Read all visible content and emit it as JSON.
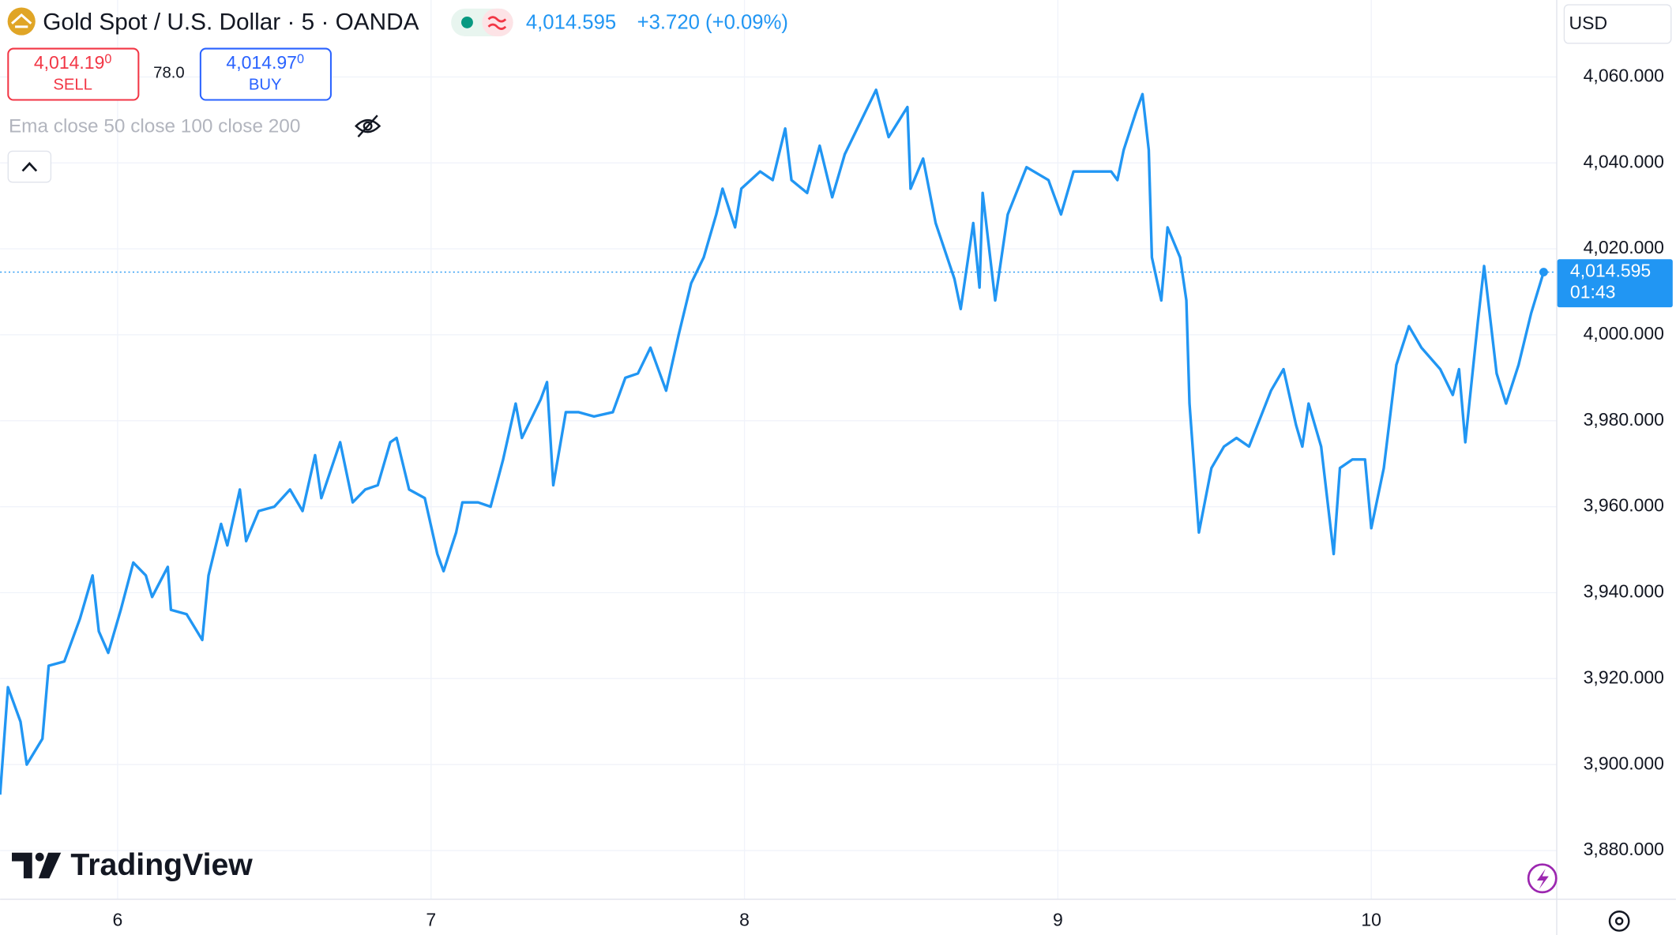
{
  "chart_data": {
    "type": "line",
    "title": "Gold Spot / U.S. Dollar · 5 · OANDA",
    "change_label": "+3.720 (+0.09%)",
    "current_price": {
      "value": 4014.595,
      "label": "4,014.595"
    },
    "countdown": "01:43",
    "currency": "USD",
    "sell": {
      "price": "4,014.19",
      "price_sup": "0",
      "label": "SELL"
    },
    "spread": "78.0",
    "buy": {
      "price": "4,014.97",
      "price_sup": "0",
      "label": "BUY"
    },
    "indicator": "Ema close 50 close 100 close 200",
    "brand": "TradingView",
    "color": "#2196f3",
    "grid": true,
    "x": [
      5.625,
      5.65,
      5.69,
      5.71,
      5.76,
      5.78,
      5.83,
      5.88,
      5.92,
      5.94,
      5.97,
      6.01,
      6.05,
      6.09,
      6.11,
      6.16,
      6.17,
      6.22,
      6.27,
      6.29,
      6.33,
      6.35,
      6.39,
      6.41,
      6.45,
      6.5,
      6.55,
      6.59,
      6.63,
      6.65,
      6.71,
      6.75,
      6.79,
      6.83,
      6.87,
      6.89,
      6.93,
      6.98,
      7.02,
      7.04,
      7.08,
      7.1,
      7.15,
      7.19,
      7.23,
      7.27,
      7.29,
      7.35,
      7.37,
      7.39,
      7.43,
      7.47,
      7.52,
      7.58,
      7.62,
      7.66,
      7.7,
      7.75,
      7.79,
      7.83,
      7.87,
      7.91,
      7.93,
      7.97,
      7.99,
      8.05,
      8.09,
      8.13,
      8.15,
      8.2,
      8.24,
      8.28,
      8.32,
      8.38,
      8.42,
      8.46,
      8.52,
      8.53,
      8.57,
      8.61,
      8.67,
      8.69,
      8.73,
      8.75,
      8.76,
      8.8,
      8.84,
      8.9,
      8.97,
      9.01,
      9.05,
      9.11,
      9.17,
      9.19,
      9.21,
      9.25,
      9.27,
      9.29,
      9.3,
      9.33,
      9.35,
      9.39,
      9.41,
      9.42,
      9.45,
      9.49,
      9.53,
      9.57,
      9.61,
      9.68,
      9.72,
      9.76,
      9.78,
      9.8,
      9.84,
      9.88,
      9.9,
      9.94,
      9.98,
      10.0,
      10.04,
      10.08,
      10.12,
      10.16,
      10.22,
      10.26,
      10.28,
      10.3,
      10.34,
      10.36,
      10.4,
      10.43,
      10.47,
      10.51,
      10.55
    ],
    "values": [
      3893,
      3918,
      3910,
      3900,
      3906,
      3923,
      3924,
      3934,
      3944,
      3931,
      3926,
      3936,
      3947,
      3944,
      3939,
      3946,
      3936,
      3935,
      3929,
      3944,
      3956,
      3951,
      3964,
      3952,
      3959,
      3960,
      3964,
      3959,
      3972,
      3962,
      3975,
      3961,
      3964,
      3965,
      3975,
      3976,
      3964,
      3962,
      3949,
      3945,
      3954,
      3961,
      3961,
      3960,
      3971,
      3984,
      3976,
      3985,
      3989,
      3965,
      3982,
      3982,
      3981,
      3982,
      3990,
      3991,
      3997,
      3987,
      4000,
      4012,
      4018,
      4028,
      4034,
      4025,
      4034,
      4038,
      4036,
      4048,
      4036,
      4033,
      4044,
      4032,
      4042,
      4051,
      4057,
      4046,
      4053,
      4034,
      4041,
      4026,
      4013,
      4006,
      4026,
      4011,
      4033,
      4008,
      4028,
      4039,
      4036,
      4028,
      4038,
      4038,
      4038,
      4036,
      4043,
      4052,
      4056,
      4043,
      4018,
      4008,
      4025,
      4018,
      4008,
      3984,
      3954,
      3969,
      3974,
      3976,
      3974,
      3987,
      3992,
      3979,
      3974,
      3984,
      3974,
      3949,
      3969,
      3971,
      3971,
      3955,
      3969,
      3993,
      4002,
      3997,
      3992,
      3986,
      3992,
      3975,
      4003,
      4016,
      3991,
      3984,
      3993,
      4005,
      4014.595
    ],
    "xlim": [
      5.625,
      10.59
    ],
    "xticks": [
      6,
      7,
      8,
      9,
      10
    ],
    "ylim": [
      3868.8,
      4077.9
    ],
    "yticks": [
      {
        "value": 3880,
        "label": "3,880.000"
      },
      {
        "value": 3900,
        "label": "3,900.000"
      },
      {
        "value": 3920,
        "label": "3,920.000"
      },
      {
        "value": 3940,
        "label": "3,940.000"
      },
      {
        "value": 3960,
        "label": "3,960.000"
      },
      {
        "value": 3980,
        "label": "3,980.000"
      },
      {
        "value": 4000,
        "label": "4,000.000"
      },
      {
        "value": 4020,
        "label": "4,020.000"
      },
      {
        "value": 4040,
        "label": "4,040.000"
      },
      {
        "value": 4060,
        "label": "4,060.000"
      }
    ]
  }
}
